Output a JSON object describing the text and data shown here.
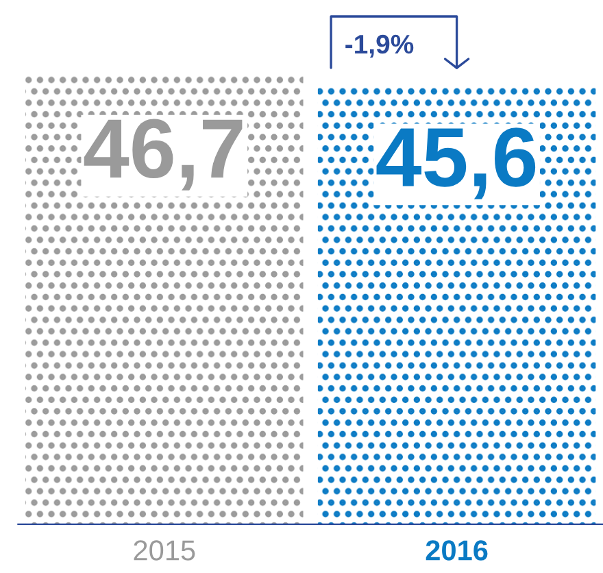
{
  "chart_data": {
    "type": "bar",
    "categories": [
      "2015",
      "2016"
    ],
    "values": [
      46.7,
      45.6
    ],
    "colors": [
      "#9a9a9a",
      "#0a7ac4"
    ],
    "data_labels": true,
    "value_labels": [
      "46,7",
      "45,6"
    ],
    "annotations": [
      "-1,9%"
    ],
    "grid": false,
    "legend": false
  }
}
